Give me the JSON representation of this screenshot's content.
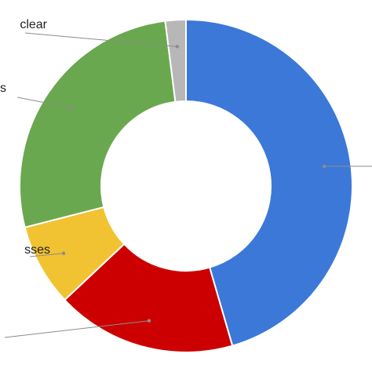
{
  "chart_data": {
    "type": "pie",
    "variant": "donut",
    "title": "",
    "start_angle_deg": 0,
    "direction": "clockwise",
    "slices": [
      {
        "label": "",
        "value": 45.5,
        "color": "#3c78d8"
      },
      {
        "label": "",
        "value": 17.5,
        "color": "#cc0000"
      },
      {
        "label": "sses",
        "value": 8.0,
        "color": "#f1c232"
      },
      {
        "label": "s",
        "value": 27.0,
        "color": "#6aa84f"
      },
      {
        "label": "clear",
        "value": 2.0,
        "color": "#b7b7b7"
      }
    ],
    "legend": "none",
    "data_labels": "outside-with-leader-lines"
  }
}
